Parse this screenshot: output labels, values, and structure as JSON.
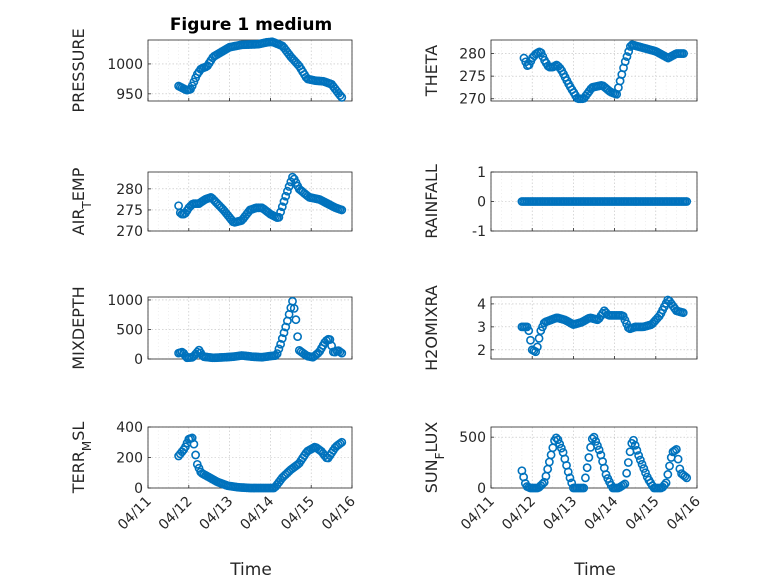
{
  "figure": {
    "title": "Figure 1 medium",
    "marker_color": "#0072BD",
    "time_label": "Time",
    "time_ticks": [
      "04/11",
      "04/12",
      "04/13",
      "04/14",
      "04/15",
      "04/16"
    ],
    "time_range_days": [
      0,
      5
    ]
  },
  "chart_data": [
    {
      "type": "scatter",
      "ylabel": "PRESSURE",
      "ylim": [
        938,
        1040
      ],
      "yticks": [
        {
          "value": 950,
          "label": "950"
        },
        {
          "value": 1000,
          "label": "1000"
        }
      ],
      "knots": [
        [
          0.75,
          963
        ],
        [
          0.95,
          956
        ],
        [
          1.05,
          958
        ],
        [
          1.2,
          982
        ],
        [
          1.3,
          992
        ],
        [
          1.45,
          996
        ],
        [
          1.6,
          1012
        ],
        [
          1.8,
          1020
        ],
        [
          2.0,
          1028
        ],
        [
          2.3,
          1032
        ],
        [
          2.7,
          1033
        ],
        [
          2.9,
          1036
        ],
        [
          3.05,
          1037
        ],
        [
          3.3,
          1030
        ],
        [
          3.5,
          1012
        ],
        [
          3.7,
          997
        ],
        [
          3.9,
          975
        ],
        [
          4.1,
          972
        ],
        [
          4.3,
          971
        ],
        [
          4.5,
          966
        ],
        [
          4.7,
          948
        ],
        [
          4.75,
          944
        ]
      ]
    },
    {
      "type": "scatter",
      "ylabel": "THETA",
      "ylim": [
        269.5,
        283
      ],
      "yticks": [
        {
          "value": 270,
          "label": "270"
        },
        {
          "value": 275,
          "label": "275"
        },
        {
          "value": 280,
          "label": "280"
        }
      ],
      "knots": [
        [
          0.8,
          279
        ],
        [
          0.9,
          277
        ],
        [
          1.0,
          279
        ],
        [
          1.1,
          280
        ],
        [
          1.2,
          280.5
        ],
        [
          1.3,
          278.5
        ],
        [
          1.4,
          277
        ],
        [
          1.5,
          277
        ],
        [
          1.6,
          277.5
        ],
        [
          1.7,
          276.5
        ],
        [
          1.9,
          273
        ],
        [
          2.1,
          270
        ],
        [
          2.25,
          270
        ],
        [
          2.45,
          272.5
        ],
        [
          2.7,
          273
        ],
        [
          2.9,
          271.5
        ],
        [
          3.05,
          271
        ],
        [
          3.25,
          278
        ],
        [
          3.4,
          282
        ],
        [
          3.6,
          281.5
        ],
        [
          3.8,
          281
        ],
        [
          4.0,
          280.5
        ],
        [
          4.3,
          279
        ],
        [
          4.5,
          280
        ],
        [
          4.7,
          280
        ]
      ]
    },
    {
      "type": "scatter",
      "ylabel": "AIR_TEMP",
      "ylim": [
        270,
        284
      ],
      "yticks": [
        {
          "value": 270,
          "label": "270"
        },
        {
          "value": 275,
          "label": "275"
        },
        {
          "value": 280,
          "label": "280"
        }
      ],
      "knots": [
        [
          0.75,
          276
        ],
        [
          0.8,
          274
        ],
        [
          0.9,
          274
        ],
        [
          1.0,
          275.5
        ],
        [
          1.1,
          276.5
        ],
        [
          1.25,
          276.5
        ],
        [
          1.4,
          277.5
        ],
        [
          1.55,
          278
        ],
        [
          1.7,
          276.5
        ],
        [
          1.85,
          275
        ],
        [
          2.1,
          272
        ],
        [
          2.3,
          272.5
        ],
        [
          2.5,
          275
        ],
        [
          2.65,
          275.5
        ],
        [
          2.8,
          275.5
        ],
        [
          3.0,
          274
        ],
        [
          3.2,
          273
        ],
        [
          3.4,
          279
        ],
        [
          3.55,
          283
        ],
        [
          3.7,
          280
        ],
        [
          3.95,
          278
        ],
        [
          4.2,
          277.5
        ],
        [
          4.4,
          276.5
        ],
        [
          4.6,
          275.5
        ],
        [
          4.75,
          275
        ]
      ]
    },
    {
      "type": "scatter",
      "ylabel": "RAINFALL",
      "ylim": [
        -1,
        1
      ],
      "yticks": [
        {
          "value": -1,
          "label": "-1"
        },
        {
          "value": 0,
          "label": "0"
        },
        {
          "value": 1,
          "label": "1"
        }
      ],
      "knots": [
        [
          0.75,
          0
        ],
        [
          4.75,
          0
        ]
      ]
    },
    {
      "type": "scatter",
      "ylabel": "MIXDEPTH",
      "ylim": [
        0,
        1050
      ],
      "yticks": [
        {
          "value": 0,
          "label": "0"
        },
        {
          "value": 500,
          "label": "500"
        },
        {
          "value": 1000,
          "label": "1000"
        }
      ],
      "knots": [
        [
          0.75,
          100
        ],
        [
          0.85,
          120
        ],
        [
          0.95,
          20
        ],
        [
          1.1,
          30
        ],
        [
          1.25,
          150
        ],
        [
          1.35,
          40
        ],
        [
          1.6,
          20
        ],
        [
          1.9,
          30
        ],
        [
          2.1,
          40
        ],
        [
          2.3,
          60
        ],
        [
          2.55,
          40
        ],
        [
          2.8,
          30
        ],
        [
          3.0,
          50
        ],
        [
          3.15,
          60
        ],
        [
          3.25,
          250
        ],
        [
          3.4,
          600
        ],
        [
          3.55,
          1000
        ],
        [
          3.62,
          700
        ],
        [
          3.7,
          150
        ],
        [
          3.9,
          50
        ],
        [
          4.05,
          30
        ],
        [
          4.2,
          120
        ],
        [
          4.35,
          300
        ],
        [
          4.45,
          350
        ],
        [
          4.55,
          100
        ],
        [
          4.65,
          150
        ],
        [
          4.75,
          100
        ]
      ]
    },
    {
      "type": "scatter",
      "ylabel": "H2OMIXRA",
      "ylim": [
        1.6,
        4.3
      ],
      "yticks": [
        {
          "value": 2,
          "label": "2"
        },
        {
          "value": 3,
          "label": "3"
        },
        {
          "value": 4,
          "label": "4"
        }
      ],
      "knots": [
        [
          0.75,
          3
        ],
        [
          0.9,
          3
        ],
        [
          1.0,
          2
        ],
        [
          1.1,
          1.9
        ],
        [
          1.2,
          2.8
        ],
        [
          1.3,
          3.2
        ],
        [
          1.45,
          3.3
        ],
        [
          1.6,
          3.4
        ],
        [
          1.8,
          3.3
        ],
        [
          2.0,
          3.1
        ],
        [
          2.2,
          3.2
        ],
        [
          2.4,
          3.4
        ],
        [
          2.6,
          3.3
        ],
        [
          2.75,
          3.7
        ],
        [
          2.85,
          3.5
        ],
        [
          3.2,
          3.5
        ],
        [
          3.35,
          2.9
        ],
        [
          3.5,
          3
        ],
        [
          3.7,
          3
        ],
        [
          3.9,
          3.1
        ],
        [
          4.1,
          3.5
        ],
        [
          4.3,
          4.2
        ],
        [
          4.5,
          3.7
        ],
        [
          4.7,
          3.6
        ]
      ]
    },
    {
      "type": "scatter",
      "ylabel": "TERR_MSL",
      "ylim": [
        0,
        400
      ],
      "yticks": [
        {
          "value": 0,
          "label": "0"
        },
        {
          "value": 200,
          "label": "200"
        },
        {
          "value": 400,
          "label": "400"
        }
      ],
      "knots": [
        [
          0.75,
          210
        ],
        [
          0.9,
          260
        ],
        [
          1.0,
          320
        ],
        [
          1.1,
          330
        ],
        [
          1.2,
          160
        ],
        [
          1.3,
          100
        ],
        [
          1.5,
          70
        ],
        [
          1.7,
          40
        ],
        [
          1.95,
          15
        ],
        [
          2.2,
          5
        ],
        [
          2.5,
          0
        ],
        [
          2.9,
          0
        ],
        [
          3.1,
          0
        ],
        [
          3.3,
          70
        ],
        [
          3.5,
          120
        ],
        [
          3.7,
          160
        ],
        [
          3.9,
          240
        ],
        [
          4.1,
          270
        ],
        [
          4.25,
          240
        ],
        [
          4.4,
          190
        ],
        [
          4.6,
          270
        ],
        [
          4.75,
          300
        ]
      ]
    },
    {
      "type": "scatter",
      "ylabel": "SUN_FLUX",
      "ylim": [
        0,
        600
      ],
      "yticks": [
        {
          "value": 0,
          "label": "0"
        },
        {
          "value": 500,
          "label": "500"
        }
      ],
      "knots": [
        [
          0.75,
          170
        ],
        [
          0.85,
          20
        ],
        [
          0.95,
          0
        ],
        [
          1.15,
          0
        ],
        [
          1.3,
          60
        ],
        [
          1.55,
          480
        ],
        [
          1.6,
          500
        ],
        [
          1.75,
          350
        ],
        [
          1.9,
          120
        ],
        [
          2.0,
          0
        ],
        [
          2.25,
          0
        ],
        [
          2.45,
          480
        ],
        [
          2.5,
          500
        ],
        [
          2.65,
          350
        ],
        [
          2.8,
          120
        ],
        [
          2.95,
          0
        ],
        [
          3.1,
          0
        ],
        [
          3.25,
          40
        ],
        [
          3.4,
          420
        ],
        [
          3.45,
          480
        ],
        [
          3.6,
          300
        ],
        [
          3.8,
          100
        ],
        [
          3.95,
          0
        ],
        [
          4.15,
          0
        ],
        [
          4.25,
          50
        ],
        [
          4.4,
          350
        ],
        [
          4.5,
          380
        ],
        [
          4.6,
          150
        ],
        [
          4.75,
          100
        ]
      ]
    }
  ]
}
